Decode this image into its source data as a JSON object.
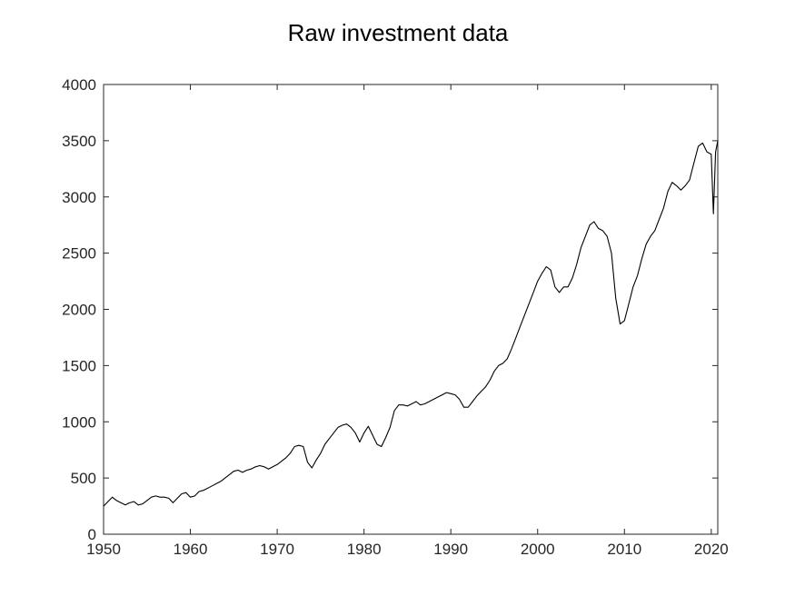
{
  "chart_data": {
    "type": "line",
    "title": "Raw investment data",
    "xlabel": "",
    "ylabel": "",
    "xlim": [
      1950,
      2020.75
    ],
    "ylim": [
      0,
      4000
    ],
    "x_ticks": [
      1950,
      1960,
      1970,
      1980,
      1990,
      2000,
      2010,
      2020
    ],
    "y_ticks": [
      0,
      500,
      1000,
      1500,
      2000,
      2500,
      3000,
      3500,
      4000
    ],
    "grid": false,
    "legend": "none",
    "line_color": "#000000",
    "series": [
      {
        "x": [
          1950,
          1950.5,
          1951,
          1951.5,
          1952,
          1952.5,
          1953,
          1953.5,
          1954,
          1954.5,
          1955,
          1955.5,
          1956,
          1956.5,
          1957,
          1957.5,
          1958,
          1958.5,
          1959,
          1959.5,
          1960,
          1960.5,
          1961,
          1961.5,
          1962,
          1962.5,
          1963,
          1963.5,
          1964,
          1964.5,
          1965,
          1965.5,
          1966,
          1966.5,
          1967,
          1967.5,
          1968,
          1968.5,
          1969,
          1969.5,
          1970,
          1970.5,
          1971,
          1971.5,
          1972,
          1972.5,
          1973,
          1973.5,
          1974,
          1974.5,
          1975,
          1975.5,
          1976,
          1976.5,
          1977,
          1977.5,
          1978,
          1978.5,
          1979,
          1979.5,
          1980,
          1980.5,
          1981,
          1981.5,
          1982,
          1982.5,
          1983,
          1983.5,
          1984,
          1984.5,
          1985,
          1985.5,
          1986,
          1986.5,
          1987,
          1987.5,
          1988,
          1988.5,
          1989,
          1989.5,
          1990,
          1990.5,
          1991,
          1991.5,
          1992,
          1992.5,
          1993,
          1993.5,
          1994,
          1994.5,
          1995,
          1995.5,
          1996,
          1996.5,
          1997,
          1997.5,
          1998,
          1998.5,
          1999,
          1999.5,
          2000,
          2000.5,
          2001,
          2001.5,
          2002,
          2002.5,
          2003,
          2003.5,
          2004,
          2004.5,
          2005,
          2005.5,
          2006,
          2006.5,
          2007,
          2007.5,
          2008,
          2008.5,
          2009,
          2009.5,
          2010,
          2010.5,
          2011,
          2011.5,
          2012,
          2012.5,
          2013,
          2013.5,
          2014,
          2014.5,
          2015,
          2015.5,
          2016,
          2016.5,
          2017,
          2017.5,
          2018,
          2018.5,
          2019,
          2019.5,
          2020,
          2020.25,
          2020.5,
          2020.75
        ],
        "values": [
          250,
          290,
          330,
          300,
          280,
          260,
          280,
          290,
          260,
          270,
          300,
          330,
          340,
          330,
          330,
          320,
          280,
          320,
          360,
          370,
          330,
          340,
          380,
          390,
          410,
          430,
          450,
          470,
          500,
          530,
          560,
          570,
          550,
          570,
          580,
          600,
          610,
          600,
          580,
          600,
          620,
          650,
          680,
          720,
          780,
          790,
          780,
          640,
          590,
          660,
          720,
          800,
          850,
          900,
          950,
          970,
          980,
          950,
          900,
          820,
          900,
          960,
          880,
          800,
          780,
          860,
          950,
          1100,
          1150,
          1150,
          1140,
          1160,
          1180,
          1150,
          1160,
          1180,
          1200,
          1220,
          1240,
          1260,
          1250,
          1240,
          1200,
          1130,
          1130,
          1180,
          1230,
          1270,
          1310,
          1370,
          1450,
          1500,
          1520,
          1560,
          1650,
          1750,
          1850,
          1950,
          2050,
          2150,
          2250,
          2320,
          2380,
          2350,
          2200,
          2150,
          2200,
          2200,
          2280,
          2400,
          2550,
          2650,
          2750,
          2780,
          2720,
          2700,
          2650,
          2500,
          2100,
          1870,
          1900,
          2050,
          2200,
          2300,
          2450,
          2580,
          2650,
          2700,
          2800,
          2900,
          3050,
          3130,
          3100,
          3060,
          3100,
          3150,
          3300,
          3450,
          3480,
          3400,
          3380,
          2850,
          3400,
          3500
        ]
      }
    ]
  }
}
